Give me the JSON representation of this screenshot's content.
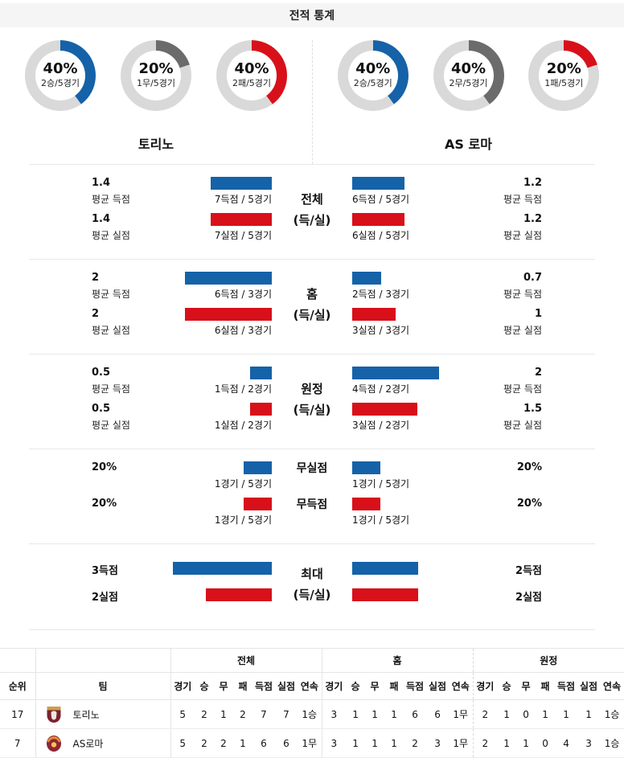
{
  "title": "전적 통계",
  "colors": {
    "win_blue": "#1562a8",
    "draw_gray": "#6b6b6b",
    "loss_red": "#d8101a",
    "ring_gray": "#d9d9d9"
  },
  "teams": [
    {
      "name": "토리노"
    },
    {
      "name": "AS 로마"
    }
  ],
  "donuts": {
    "left": [
      {
        "pct": "40%",
        "record": "2승/5경기",
        "type": "win",
        "value": 40
      },
      {
        "pct": "20%",
        "record": "1무/5경기",
        "type": "draw",
        "value": 20
      },
      {
        "pct": "40%",
        "record": "2패/5경기",
        "type": "loss",
        "value": 40
      }
    ],
    "right": [
      {
        "pct": "40%",
        "record": "2승/5경기",
        "type": "win",
        "value": 40
      },
      {
        "pct": "40%",
        "record": "2무/5경기",
        "type": "draw",
        "value": 40
      },
      {
        "pct": "20%",
        "record": "1패/5경기",
        "type": "loss",
        "value": 20
      }
    ]
  },
  "sections": [
    {
      "category_lines": [
        "전체",
        "(득/실)"
      ],
      "rows": [
        {
          "left": {
            "big": "1.4",
            "sub": "평균 득점",
            "bar_label": "7득점 / 5경기",
            "value": 1.4
          },
          "right": {
            "big": "1.2",
            "sub": "평균 득점",
            "bar_label": "6득점 / 5경기",
            "value": 1.2
          }
        },
        {
          "left": {
            "big": "1.4",
            "sub": "평균 실점",
            "bar_label": "7실점 / 5경기",
            "value": 1.4
          },
          "right": {
            "big": "1.2",
            "sub": "평균 실점",
            "bar_label": "6실점 / 5경기",
            "value": 1.2
          }
        }
      ]
    },
    {
      "category_lines": [
        "홈",
        "(득/실)"
      ],
      "rows": [
        {
          "left": {
            "big": "2",
            "sub": "평균 득점",
            "bar_label": "6득점 / 3경기",
            "value": 2
          },
          "right": {
            "big": "0.7",
            "sub": "평균 득점",
            "bar_label": "2득점 / 3경기",
            "value": 0.67
          }
        },
        {
          "left": {
            "big": "2",
            "sub": "평균 실점",
            "bar_label": "6실점 / 3경기",
            "value": 2
          },
          "right": {
            "big": "1",
            "sub": "평균 실점",
            "bar_label": "3실점 / 3경기",
            "value": 1
          }
        }
      ]
    },
    {
      "category_lines": [
        "원정",
        "(득/실)"
      ],
      "rows": [
        {
          "left": {
            "big": "0.5",
            "sub": "평균 득점",
            "bar_label": "1득점 / 2경기",
            "value": 0.5
          },
          "right": {
            "big": "2",
            "sub": "평균 득점",
            "bar_label": "4득점 / 2경기",
            "value": 2
          }
        },
        {
          "left": {
            "big": "0.5",
            "sub": "평균 실점",
            "bar_label": "1실점 / 2경기",
            "value": 0.5
          },
          "right": {
            "big": "1.5",
            "sub": "평균 실점",
            "bar_label": "3실점 / 2경기",
            "value": 1.5
          }
        }
      ]
    },
    {
      "per_row_labels": [
        "무실점",
        "무득점"
      ],
      "rows": [
        {
          "left": {
            "big": "20%",
            "bar_label": "1경기 / 5경기",
            "value": 20
          },
          "right": {
            "big": "20%",
            "bar_label": "1경기 / 5경기",
            "value": 20
          }
        },
        {
          "left": {
            "big": "20%",
            "bar_label": "1경기 / 5경기",
            "value": 20
          },
          "right": {
            "big": "20%",
            "bar_label": "1경기 / 5경기",
            "value": 20
          }
        }
      ]
    },
    {
      "category_lines": [
        "최대",
        "(득/실)"
      ],
      "rows": [
        {
          "left": {
            "big": "3득점",
            "value": 3
          },
          "right": {
            "big": "2득점",
            "value": 2
          }
        },
        {
          "left": {
            "big": "2실점",
            "value": 2
          },
          "right": {
            "big": "2실점",
            "value": 2
          }
        }
      ]
    }
  ],
  "table": {
    "group_headers": [
      "전체",
      "홈",
      "원정"
    ],
    "rank_header": "순위",
    "team_header": "팀",
    "stat_headers": [
      "경기",
      "승",
      "무",
      "패",
      "득점",
      "실점",
      "연속"
    ],
    "rows": [
      {
        "rank": "17",
        "team": "토리노",
        "crest": "torino-crest",
        "overall": [
          "5",
          "2",
          "1",
          "2",
          "7",
          "7",
          "1승"
        ],
        "home": [
          "3",
          "1",
          "1",
          "1",
          "6",
          "6",
          "1무"
        ],
        "away": [
          "2",
          "1",
          "0",
          "1",
          "1",
          "1",
          "1승"
        ]
      },
      {
        "rank": "7",
        "team": "AS로마",
        "crest": "roma-crest",
        "overall": [
          "5",
          "2",
          "2",
          "1",
          "6",
          "6",
          "1무"
        ],
        "home": [
          "3",
          "1",
          "1",
          "1",
          "2",
          "3",
          "1무"
        ],
        "away": [
          "2",
          "1",
          "1",
          "0",
          "4",
          "3",
          "1승"
        ]
      }
    ]
  }
}
